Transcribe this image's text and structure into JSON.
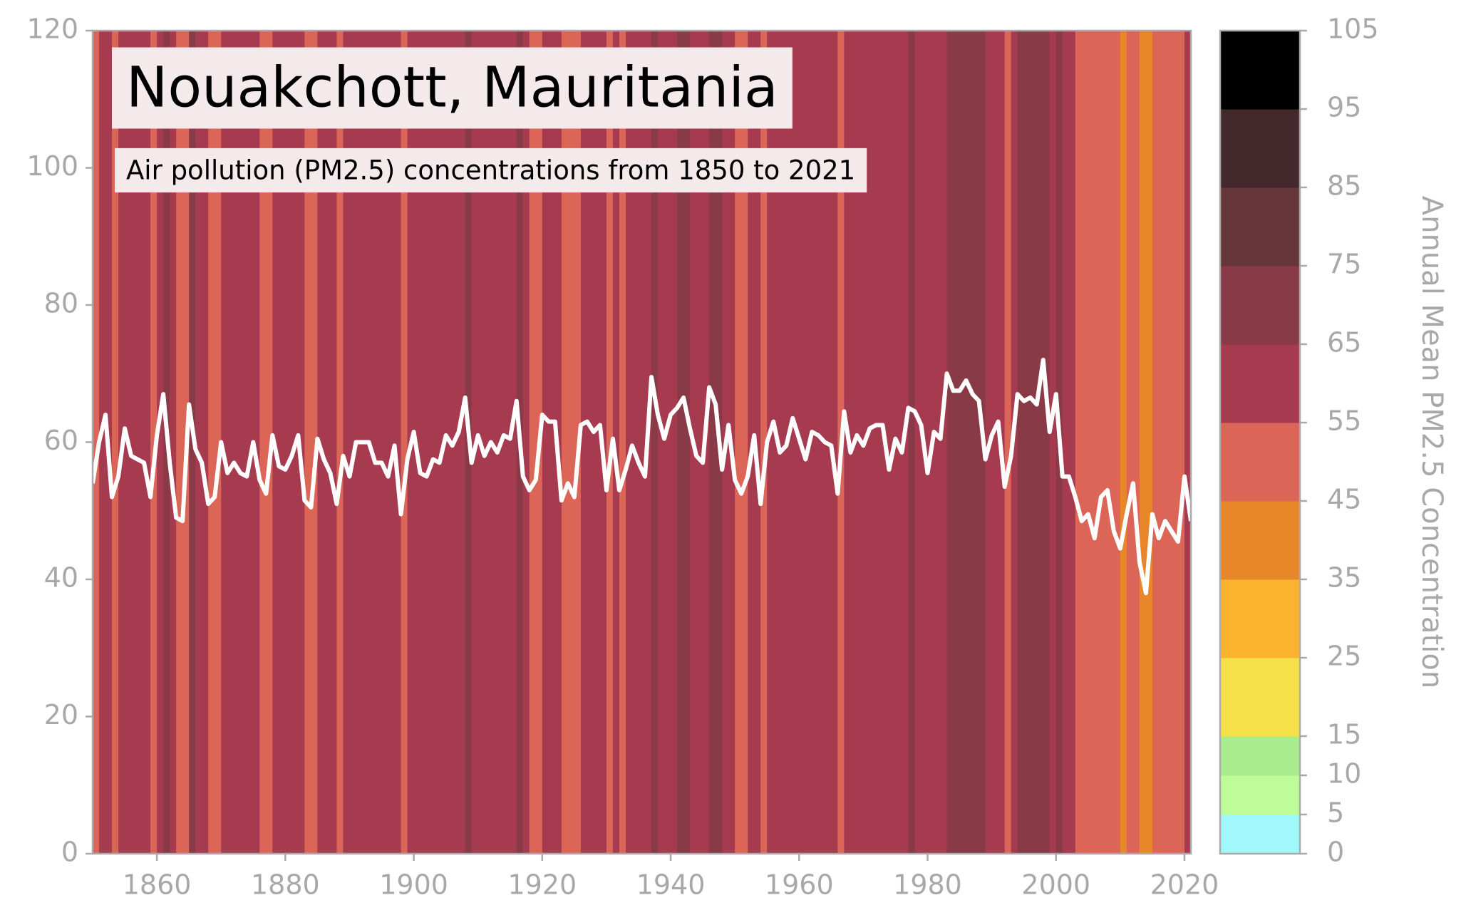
{
  "chart_data": {
    "type": "warming-stripes-line",
    "title": "Nouakchott, Mauritania",
    "subtitle": "Air pollution (PM2.5) concentrations from 1850 to 2021",
    "x": [
      1850,
      1851,
      1852,
      1853,
      1854,
      1855,
      1856,
      1857,
      1858,
      1859,
      1860,
      1861,
      1862,
      1863,
      1864,
      1865,
      1866,
      1867,
      1868,
      1869,
      1870,
      1871,
      1872,
      1873,
      1874,
      1875,
      1876,
      1877,
      1878,
      1879,
      1880,
      1881,
      1882,
      1883,
      1884,
      1885,
      1886,
      1887,
      1888,
      1889,
      1890,
      1891,
      1892,
      1893,
      1894,
      1895,
      1896,
      1897,
      1898,
      1899,
      1900,
      1901,
      1902,
      1903,
      1904,
      1905,
      1906,
      1907,
      1908,
      1909,
      1910,
      1911,
      1912,
      1913,
      1914,
      1915,
      1916,
      1917,
      1918,
      1919,
      1920,
      1921,
      1922,
      1923,
      1924,
      1925,
      1926,
      1927,
      1928,
      1929,
      1930,
      1931,
      1932,
      1933,
      1934,
      1935,
      1936,
      1937,
      1938,
      1939,
      1940,
      1941,
      1942,
      1943,
      1944,
      1945,
      1946,
      1947,
      1948,
      1949,
      1950,
      1951,
      1952,
      1953,
      1954,
      1955,
      1956,
      1957,
      1958,
      1959,
      1960,
      1961,
      1962,
      1963,
      1964,
      1965,
      1966,
      1967,
      1968,
      1969,
      1970,
      1971,
      1972,
      1973,
      1974,
      1975,
      1976,
      1977,
      1978,
      1979,
      1980,
      1981,
      1982,
      1983,
      1984,
      1985,
      1986,
      1987,
      1988,
      1989,
      1990,
      1991,
      1992,
      1993,
      1994,
      1995,
      1996,
      1997,
      1998,
      1999,
      2000,
      2001,
      2002,
      2003,
      2004,
      2005,
      2006,
      2007,
      2008,
      2009,
      2010,
      2011,
      2012,
      2013,
      2014,
      2015,
      2016,
      2017,
      2018,
      2019,
      2020,
      2021
    ],
    "values": [
      54,
      60,
      64,
      52,
      55,
      62,
      58,
      57.5,
      57,
      52,
      61,
      67,
      57,
      49,
      48.5,
      65.5,
      59,
      57,
      51,
      52,
      60,
      55.5,
      57,
      55.5,
      55,
      60,
      54.5,
      52.5,
      61,
      56.5,
      56,
      58,
      61,
      51.5,
      50.5,
      60.5,
      57.5,
      55.5,
      51,
      58,
      55,
      60,
      60,
      60,
      57,
      57,
      55,
      59.5,
      49.5,
      57.5,
      61.5,
      55.5,
      55,
      57.5,
      57,
      61,
      59.5,
      61.5,
      66.5,
      57,
      61,
      58,
      60,
      58.5,
      61,
      60.5,
      66,
      55,
      53,
      54.5,
      64,
      63,
      63,
      51.5,
      54,
      52,
      62.5,
      63,
      61.5,
      62.5,
      53,
      60.5,
      53,
      56,
      59.5,
      57,
      55,
      69.5,
      64,
      60.5,
      64,
      65,
      66.5,
      62,
      58,
      57,
      68,
      65.5,
      56,
      62.5,
      54.5,
      52.5,
      55,
      61,
      51,
      60,
      63,
      58.5,
      59.5,
      63.5,
      60.5,
      57.5,
      61.5,
      61,
      60,
      59.5,
      52.5,
      64.5,
      58.5,
      61,
      59.5,
      62,
      62.5,
      62.5,
      56,
      60.5,
      58.5,
      65,
      64.5,
      62.5,
      55.5,
      61.5,
      60.5,
      70,
      67.5,
      67.5,
      69,
      67,
      66,
      57.5,
      61,
      63,
      53.5,
      58,
      67,
      66,
      66.5,
      65.5,
      72,
      61.5,
      67,
      55,
      55,
      52,
      48.5,
      49.5,
      46,
      52,
      53,
      47,
      44.5,
      49.5,
      54,
      42.5,
      38,
      49.5,
      46,
      48.5,
      47,
      45.5,
      55,
      48.5
    ],
    "line_color": "#ffffff",
    "xlim": [
      1850,
      2021
    ],
    "xticks": [
      1860,
      1880,
      1900,
      1920,
      1940,
      1960,
      1980,
      2000,
      2020
    ],
    "ylim": [
      0,
      120
    ],
    "yticks": [
      0,
      20,
      40,
      60,
      80,
      100,
      120
    ],
    "colorbar": {
      "label": "Annual Mean PM2.5 Concentration",
      "ticks": [
        0,
        5,
        10,
        15,
        25,
        35,
        45,
        55,
        65,
        75,
        85,
        95,
        105
      ],
      "colors": [
        "#a0f8fa",
        "#bdfc98",
        "#a9ec8e",
        "#f5e04a",
        "#fbb22f",
        "#e8862a",
        "#db6657",
        "#a63b50",
        "#893a47",
        "#66363b",
        "#44292c",
        "#000000"
      ]
    }
  }
}
